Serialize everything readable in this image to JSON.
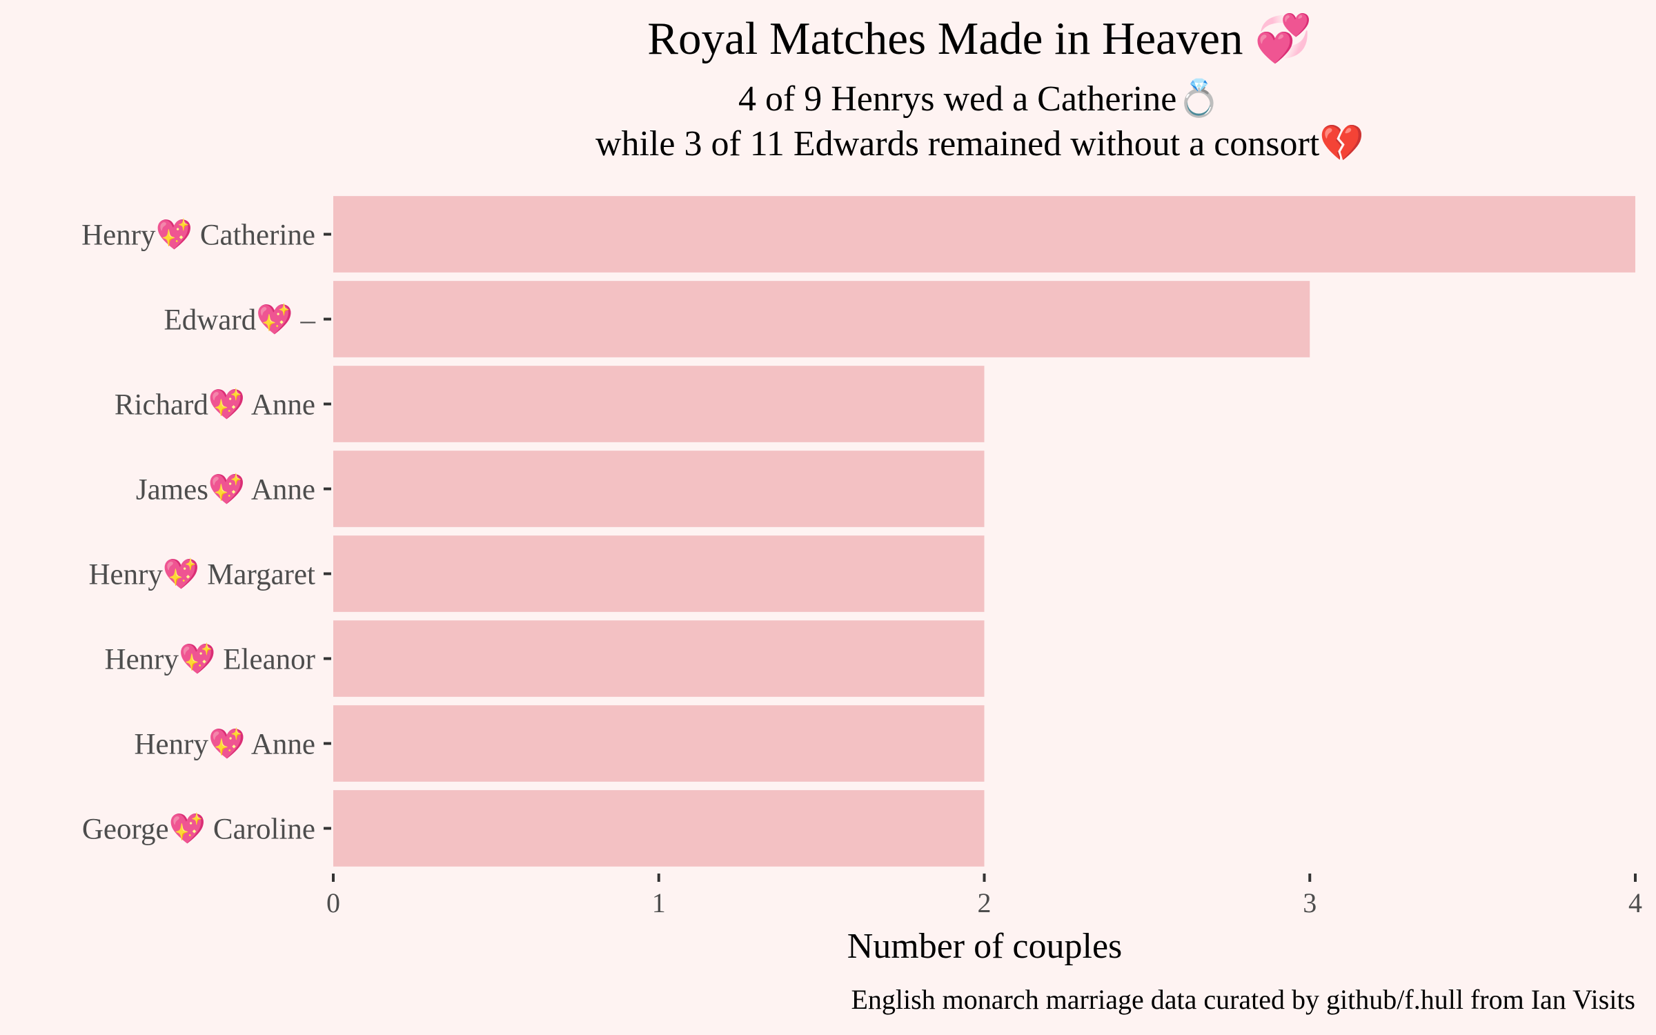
{
  "chart_data": {
    "type": "bar",
    "orientation": "horizontal",
    "title": "Royal Matches Made in Heaven 💞",
    "subtitle_lines": [
      "4 of 9 Henrys wed a Catherine💍",
      "while 3 of 11 Edwards remained without a consort💔"
    ],
    "categories": [
      "Henry💖 Catherine",
      "Edward💖 –",
      "Richard💖 Anne",
      "James💖 Anne",
      "Henry💖 Margaret",
      "Henry💖 Eleanor",
      "Henry💖 Anne",
      "George💖 Caroline"
    ],
    "values": [
      4,
      3,
      2,
      2,
      2,
      2,
      2,
      2
    ],
    "xlabel": "Number of couples",
    "ylabel": "",
    "xlim": [
      0,
      4
    ],
    "x_ticks": [
      "0",
      "1",
      "2",
      "3",
      "4"
    ],
    "caption": "English monarch marriage data curated by github/f.hull from Ian Visits",
    "grid": false,
    "legend": "none",
    "colors": {
      "background": "#fef3f2",
      "bar": "#f3c1c3",
      "tick_text": "#4d4d4d",
      "tick_mark": "#333333"
    }
  }
}
